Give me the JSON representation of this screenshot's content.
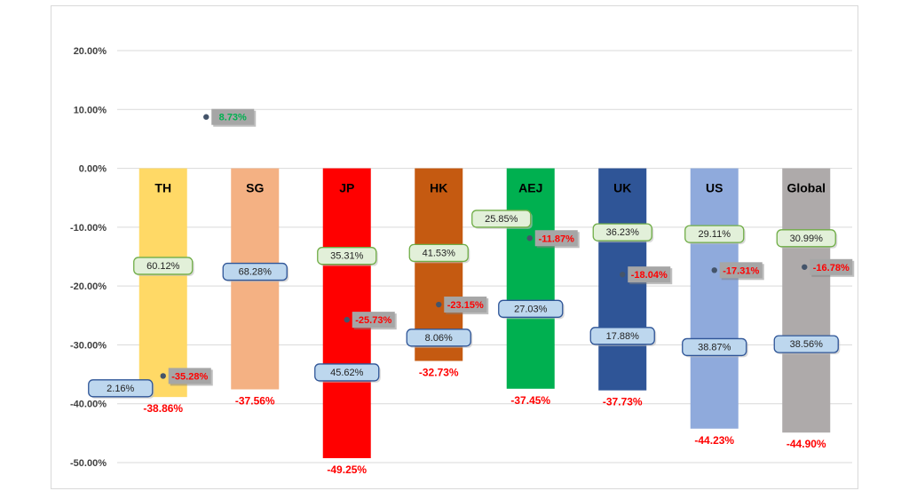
{
  "chart_data": {
    "type": "bar",
    "title": "",
    "xlabel": "",
    "ylabel": "",
    "ylim": [
      -50,
      20
    ],
    "yticks": [
      "20.00%",
      "10.00%",
      "0.00%",
      "-10.00%",
      "-20.00%",
      "-30.00%",
      "-40.00%",
      "-50.00%"
    ],
    "grid": true,
    "categories": [
      {
        "name": "TH",
        "color": "#ffd966",
        "min": -38.86,
        "min_label": "-38.86%",
        "green_label": "60.12%",
        "green_y": -16.5,
        "blue_label": "2.16%",
        "blue_y": -37.3,
        "dot": -35.28,
        "dot_label": "-35.28%"
      },
      {
        "name": "SG",
        "color": "#f4b183",
        "min": -37.56,
        "min_label": "-37.56%",
        "green_label": "",
        "green_y": null,
        "blue_label": "68.28%",
        "blue_y": -17.5,
        "dot": 8.73,
        "dot_label": "8.73%"
      },
      {
        "name": "JP",
        "color": "#ff0000",
        "min": -49.25,
        "min_label": "-49.25%",
        "green_label": "35.31%",
        "green_y": -14.8,
        "blue_label": "45.62%",
        "blue_y": -34.6,
        "dot": -25.73,
        "dot_label": "-25.73%"
      },
      {
        "name": "HK",
        "color": "#c55a11",
        "min": -32.73,
        "min_label": "-32.73%",
        "green_label": "41.53%",
        "green_y": -14.3,
        "blue_label": "8.06%",
        "blue_y": -28.7,
        "dot": -23.15,
        "dot_label": "-23.15%"
      },
      {
        "name": "AEJ",
        "color": "#00b050",
        "min": -37.45,
        "min_label": "-37.45%",
        "green_label": "25.85%",
        "green_y": -8.5,
        "blue_label": "27.03%",
        "blue_y": -23.8,
        "dot": -11.87,
        "dot_label": "-11.87%"
      },
      {
        "name": "UK",
        "color": "#2f5597",
        "min": -37.73,
        "min_label": "-37.73%",
        "green_label": "36.23%",
        "green_y": -10.8,
        "blue_label": "17.88%",
        "blue_y": -28.4,
        "dot": -18.04,
        "dot_label": "-18.04%"
      },
      {
        "name": "US",
        "color": "#8faadc",
        "min": -44.23,
        "min_label": "-44.23%",
        "green_label": "29.11%",
        "green_y": -11.1,
        "blue_label": "38.87%",
        "blue_y": -30.3,
        "dot": -17.31,
        "dot_label": "-17.31%"
      },
      {
        "name": "Global",
        "color": "#aeaaaa",
        "min": -44.9,
        "min_label": "-44.90%",
        "green_label": "30.99%",
        "green_y": -11.8,
        "blue_label": "38.56%",
        "blue_y": -29.8,
        "dot": -16.78,
        "dot_label": "-16.78%"
      }
    ],
    "colors": {
      "green_box_fill": "#e2f0d9",
      "green_box_stroke": "#70ad47",
      "blue_box_fill": "#bdd7ee",
      "blue_box_stroke": "#2f5597",
      "dot": "#44546a",
      "dot_label_fill": "#a6a6a6",
      "dot_label_neg": "#ff0000",
      "dot_label_pos": "#00b050",
      "bottom_label": "#ff0000",
      "grid": "#d9d9d9"
    }
  }
}
